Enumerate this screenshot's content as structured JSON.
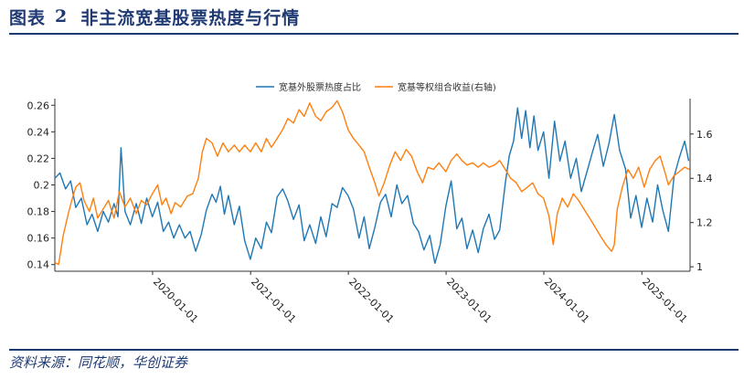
{
  "header": {
    "label": "图表",
    "number": "2",
    "title": "非主流宽基股票热度与行情"
  },
  "source": "资料来源：同花顺，华创证券",
  "chart_data": {
    "type": "line",
    "legend_position": "top-center",
    "grid": false,
    "x_range": [
      "2019-01-01",
      "2025-06-30"
    ],
    "x_ticks": [
      "2020-01-01",
      "2021-01-01",
      "2022-01-01",
      "2023-01-01",
      "2024-01-01",
      "2025-01-01"
    ],
    "y_left": {
      "range": [
        0.135,
        0.265
      ],
      "ticks": [
        0.14,
        0.16,
        0.18,
        0.2,
        0.22,
        0.24,
        0.26
      ]
    },
    "y_right": {
      "range": [
        0.98,
        1.76
      ],
      "ticks": [
        1,
        1.2,
        1.4,
        1.6
      ]
    },
    "series": [
      {
        "name": "宽基外股票热度占比",
        "axis": "left",
        "color": "#1f77b4",
        "points": [
          [
            "2019-01-01",
            0.205
          ],
          [
            "2019-01-20",
            0.209
          ],
          [
            "2019-02-10",
            0.197
          ],
          [
            "2019-03-01",
            0.203
          ],
          [
            "2019-03-20",
            0.183
          ],
          [
            "2019-04-10",
            0.19
          ],
          [
            "2019-05-01",
            0.17
          ],
          [
            "2019-05-20",
            0.178
          ],
          [
            "2019-06-10",
            0.165
          ],
          [
            "2019-07-01",
            0.18
          ],
          [
            "2019-07-20",
            0.172
          ],
          [
            "2019-08-10",
            0.186
          ],
          [
            "2019-08-25",
            0.176
          ],
          [
            "2019-09-05",
            0.228
          ],
          [
            "2019-09-20",
            0.18
          ],
          [
            "2019-10-10",
            0.17
          ],
          [
            "2019-11-01",
            0.186
          ],
          [
            "2019-11-20",
            0.171
          ],
          [
            "2019-12-10",
            0.19
          ],
          [
            "2019-12-31",
            0.176
          ],
          [
            "2020-01-20",
            0.187
          ],
          [
            "2020-02-10",
            0.165
          ],
          [
            "2020-03-01",
            0.172
          ],
          [
            "2020-03-20",
            0.16
          ],
          [
            "2020-04-10",
            0.17
          ],
          [
            "2020-05-01",
            0.16
          ],
          [
            "2020-05-20",
            0.165
          ],
          [
            "2020-06-10",
            0.15
          ],
          [
            "2020-07-01",
            0.163
          ],
          [
            "2020-07-20",
            0.181
          ],
          [
            "2020-08-10",
            0.193
          ],
          [
            "2020-08-25",
            0.187
          ],
          [
            "2020-09-10",
            0.199
          ],
          [
            "2020-09-25",
            0.178
          ],
          [
            "2020-10-10",
            0.192
          ],
          [
            "2020-11-01",
            0.17
          ],
          [
            "2020-11-20",
            0.184
          ],
          [
            "2020-12-10",
            0.158
          ],
          [
            "2020-12-31",
            0.144
          ],
          [
            "2021-01-20",
            0.16
          ],
          [
            "2021-02-10",
            0.152
          ],
          [
            "2021-03-01",
            0.172
          ],
          [
            "2021-03-20",
            0.164
          ],
          [
            "2021-04-10",
            0.191
          ],
          [
            "2021-05-01",
            0.197
          ],
          [
            "2021-05-20",
            0.188
          ],
          [
            "2021-06-10",
            0.174
          ],
          [
            "2021-07-01",
            0.185
          ],
          [
            "2021-07-20",
            0.158
          ],
          [
            "2021-08-10",
            0.17
          ],
          [
            "2021-09-01",
            0.156
          ],
          [
            "2021-09-20",
            0.176
          ],
          [
            "2021-10-10",
            0.161
          ],
          [
            "2021-11-01",
            0.186
          ],
          [
            "2021-11-20",
            0.183
          ],
          [
            "2021-12-10",
            0.198
          ],
          [
            "2021-12-31",
            0.192
          ],
          [
            "2022-01-20",
            0.182
          ],
          [
            "2022-02-10",
            0.16
          ],
          [
            "2022-03-01",
            0.176
          ],
          [
            "2022-03-20",
            0.152
          ],
          [
            "2022-04-10",
            0.168
          ],
          [
            "2022-05-01",
            0.187
          ],
          [
            "2022-05-20",
            0.193
          ],
          [
            "2022-06-10",
            0.176
          ],
          [
            "2022-07-01",
            0.2
          ],
          [
            "2022-07-20",
            0.186
          ],
          [
            "2022-08-10",
            0.192
          ],
          [
            "2022-09-01",
            0.171
          ],
          [
            "2022-09-20",
            0.165
          ],
          [
            "2022-10-10",
            0.151
          ],
          [
            "2022-11-01",
            0.162
          ],
          [
            "2022-11-20",
            0.141
          ],
          [
            "2022-12-10",
            0.155
          ],
          [
            "2022-12-31",
            0.184
          ],
          [
            "2023-01-20",
            0.203
          ],
          [
            "2023-02-10",
            0.167
          ],
          [
            "2023-03-01",
            0.175
          ],
          [
            "2023-03-20",
            0.152
          ],
          [
            "2023-04-10",
            0.166
          ],
          [
            "2023-05-01",
            0.149
          ],
          [
            "2023-05-20",
            0.167
          ],
          [
            "2023-06-10",
            0.178
          ],
          [
            "2023-07-01",
            0.159
          ],
          [
            "2023-07-20",
            0.166
          ],
          [
            "2023-08-10",
            0.201
          ],
          [
            "2023-08-25",
            0.222
          ],
          [
            "2023-09-10",
            0.233
          ],
          [
            "2023-09-25",
            0.258
          ],
          [
            "2023-10-10",
            0.235
          ],
          [
            "2023-10-25",
            0.256
          ],
          [
            "2023-11-10",
            0.228
          ],
          [
            "2023-11-25",
            0.252
          ],
          [
            "2023-12-10",
            0.226
          ],
          [
            "2023-12-31",
            0.24
          ],
          [
            "2024-01-20",
            0.205
          ],
          [
            "2024-02-10",
            0.248
          ],
          [
            "2024-03-01",
            0.218
          ],
          [
            "2024-03-20",
            0.233
          ],
          [
            "2024-04-10",
            0.205
          ],
          [
            "2024-05-01",
            0.22
          ],
          [
            "2024-05-20",
            0.195
          ],
          [
            "2024-06-10",
            0.21
          ],
          [
            "2024-07-01",
            0.225
          ],
          [
            "2024-07-20",
            0.238
          ],
          [
            "2024-08-10",
            0.214
          ],
          [
            "2024-09-01",
            0.232
          ],
          [
            "2024-09-20",
            0.253
          ],
          [
            "2024-10-10",
            0.226
          ],
          [
            "2024-11-01",
            0.212
          ],
          [
            "2024-11-20",
            0.175
          ],
          [
            "2024-12-10",
            0.192
          ],
          [
            "2024-12-31",
            0.168
          ],
          [
            "2025-01-20",
            0.19
          ],
          [
            "2025-02-10",
            0.172
          ],
          [
            "2025-03-01",
            0.2
          ],
          [
            "2025-03-20",
            0.181
          ],
          [
            "2025-04-10",
            0.165
          ],
          [
            "2025-05-01",
            0.206
          ],
          [
            "2025-05-20",
            0.22
          ],
          [
            "2025-06-10",
            0.233
          ],
          [
            "2025-06-25",
            0.218
          ]
        ]
      },
      {
        "name": "宽基等权组合收益(右轴)",
        "axis": "right",
        "color": "#ff7f0e",
        "points": [
          [
            "2019-01-01",
            1.02
          ],
          [
            "2019-01-15",
            1.01
          ],
          [
            "2019-02-01",
            1.14
          ],
          [
            "2019-02-20",
            1.24
          ],
          [
            "2019-03-05",
            1.3
          ],
          [
            "2019-03-20",
            1.36
          ],
          [
            "2019-04-05",
            1.38
          ],
          [
            "2019-04-20",
            1.3
          ],
          [
            "2019-05-10",
            1.25
          ],
          [
            "2019-05-25",
            1.31
          ],
          [
            "2019-06-10",
            1.22
          ],
          [
            "2019-06-30",
            1.26
          ],
          [
            "2019-07-20",
            1.3
          ],
          [
            "2019-08-10",
            1.22
          ],
          [
            "2019-08-30",
            1.34
          ],
          [
            "2019-09-20",
            1.27
          ],
          [
            "2019-10-10",
            1.31
          ],
          [
            "2019-11-01",
            1.24
          ],
          [
            "2019-11-20",
            1.3
          ],
          [
            "2019-12-10",
            1.28
          ],
          [
            "2019-12-31",
            1.33
          ],
          [
            "2020-01-20",
            1.37
          ],
          [
            "2020-02-05",
            1.28
          ],
          [
            "2020-02-20",
            1.31
          ],
          [
            "2020-03-10",
            1.24
          ],
          [
            "2020-03-25",
            1.29
          ],
          [
            "2020-04-15",
            1.27
          ],
          [
            "2020-05-10",
            1.32
          ],
          [
            "2020-05-30",
            1.33
          ],
          [
            "2020-06-20",
            1.4
          ],
          [
            "2020-07-05",
            1.52
          ],
          [
            "2020-07-20",
            1.58
          ],
          [
            "2020-08-10",
            1.56
          ],
          [
            "2020-08-30",
            1.5
          ],
          [
            "2020-09-20",
            1.56
          ],
          [
            "2020-10-10",
            1.52
          ],
          [
            "2020-11-01",
            1.55
          ],
          [
            "2020-11-20",
            1.52
          ],
          [
            "2020-12-10",
            1.55
          ],
          [
            "2020-12-31",
            1.52
          ],
          [
            "2021-01-20",
            1.56
          ],
          [
            "2021-02-10",
            1.52
          ],
          [
            "2021-03-01",
            1.58
          ],
          [
            "2021-03-20",
            1.54
          ],
          [
            "2021-04-10",
            1.58
          ],
          [
            "2021-05-01",
            1.62
          ],
          [
            "2021-05-20",
            1.67
          ],
          [
            "2021-06-10",
            1.65
          ],
          [
            "2021-07-01",
            1.71
          ],
          [
            "2021-07-20",
            1.68
          ],
          [
            "2021-08-10",
            1.74
          ],
          [
            "2021-09-01",
            1.68
          ],
          [
            "2021-09-20",
            1.66
          ],
          [
            "2021-10-10",
            1.7
          ],
          [
            "2021-11-01",
            1.72
          ],
          [
            "2021-11-20",
            1.75
          ],
          [
            "2021-12-10",
            1.7
          ],
          [
            "2021-12-31",
            1.62
          ],
          [
            "2022-01-20",
            1.58
          ],
          [
            "2022-02-10",
            1.55
          ],
          [
            "2022-03-01",
            1.52
          ],
          [
            "2022-03-20",
            1.45
          ],
          [
            "2022-04-10",
            1.38
          ],
          [
            "2022-04-25",
            1.32
          ],
          [
            "2022-05-15",
            1.38
          ],
          [
            "2022-06-05",
            1.46
          ],
          [
            "2022-06-25",
            1.52
          ],
          [
            "2022-07-15",
            1.48
          ],
          [
            "2022-08-05",
            1.53
          ],
          [
            "2022-08-25",
            1.5
          ],
          [
            "2022-09-15",
            1.43
          ],
          [
            "2022-10-05",
            1.38
          ],
          [
            "2022-10-25",
            1.45
          ],
          [
            "2022-11-15",
            1.44
          ],
          [
            "2022-12-05",
            1.47
          ],
          [
            "2022-12-31",
            1.43
          ],
          [
            "2023-01-20",
            1.48
          ],
          [
            "2023-02-10",
            1.51
          ],
          [
            "2023-03-01",
            1.48
          ],
          [
            "2023-03-20",
            1.46
          ],
          [
            "2023-04-10",
            1.47
          ],
          [
            "2023-05-01",
            1.45
          ],
          [
            "2023-05-20",
            1.47
          ],
          [
            "2023-06-10",
            1.45
          ],
          [
            "2023-07-01",
            1.46
          ],
          [
            "2023-07-20",
            1.48
          ],
          [
            "2023-08-10",
            1.44
          ],
          [
            "2023-08-30",
            1.4
          ],
          [
            "2023-09-20",
            1.38
          ],
          [
            "2023-10-10",
            1.34
          ],
          [
            "2023-11-01",
            1.36
          ],
          [
            "2023-11-20",
            1.38
          ],
          [
            "2023-12-10",
            1.33
          ],
          [
            "2023-12-31",
            1.31
          ],
          [
            "2024-01-20",
            1.23
          ],
          [
            "2024-02-05",
            1.1
          ],
          [
            "2024-02-20",
            1.24
          ],
          [
            "2024-03-10",
            1.31
          ],
          [
            "2024-03-30",
            1.27
          ],
          [
            "2024-04-20",
            1.33
          ],
          [
            "2024-05-10",
            1.3
          ],
          [
            "2024-05-30",
            1.26
          ],
          [
            "2024-06-20",
            1.22
          ],
          [
            "2024-07-10",
            1.18
          ],
          [
            "2024-07-30",
            1.14
          ],
          [
            "2024-08-20",
            1.1
          ],
          [
            "2024-09-10",
            1.07
          ],
          [
            "2024-09-20",
            1.1
          ],
          [
            "2024-10-01",
            1.26
          ],
          [
            "2024-10-20",
            1.36
          ],
          [
            "2024-11-10",
            1.44
          ],
          [
            "2024-11-30",
            1.4
          ],
          [
            "2024-12-20",
            1.45
          ],
          [
            "2025-01-10",
            1.36
          ],
          [
            "2025-01-30",
            1.44
          ],
          [
            "2025-02-20",
            1.48
          ],
          [
            "2025-03-10",
            1.5
          ],
          [
            "2025-03-30",
            1.42
          ],
          [
            "2025-04-10",
            1.37
          ],
          [
            "2025-04-30",
            1.41
          ],
          [
            "2025-05-20",
            1.43
          ],
          [
            "2025-06-10",
            1.45
          ],
          [
            "2025-06-28",
            1.44
          ]
        ]
      }
    ]
  }
}
